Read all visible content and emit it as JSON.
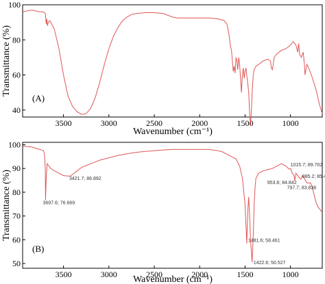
{
  "chart_data": [
    {
      "type": "line",
      "panel_label": "(A)",
      "xlabel": "Wavenumber (cm⁻¹)",
      "ylabel": "Transmittance (%)",
      "xlim": [
        3950,
        650
      ],
      "ylim": [
        36,
        100
      ],
      "x_ticks": [
        3500,
        3000,
        2500,
        2000,
        1500,
        1000
      ],
      "y_ticks": [
        40,
        60,
        80,
        100
      ],
      "series": [
        {
          "color": "#e05555",
          "points": [
            [
              3950,
              96
            ],
            [
              3850,
              97
            ],
            [
              3760,
              96
            ],
            [
              3720,
              96
            ],
            [
              3700,
              95
            ],
            [
              3690,
              89
            ],
            [
              3684,
              92
            ],
            [
              3676,
              88
            ],
            [
              3668,
              90
            ],
            [
              3650,
              91
            ],
            [
              3600,
              86
            ],
            [
              3550,
              75
            ],
            [
              3500,
              60
            ],
            [
              3450,
              48
            ],
            [
              3400,
              42
            ],
            [
              3350,
              39
            ],
            [
              3300,
              37.5
            ],
            [
              3250,
              38
            ],
            [
              3200,
              41
            ],
            [
              3150,
              47
            ],
            [
              3100,
              56
            ],
            [
              3050,
              66
            ],
            [
              3000,
              75
            ],
            [
              2950,
              82
            ],
            [
              2900,
              87
            ],
            [
              2850,
              91
            ],
            [
              2800,
              93
            ],
            [
              2750,
              94.5
            ],
            [
              2700,
              95
            ],
            [
              2600,
              95.5
            ],
            [
              2500,
              95.5
            ],
            [
              2400,
              95
            ],
            [
              2350,
              94
            ],
            [
              2300,
              93
            ],
            [
              2250,
              92.5
            ],
            [
              2100,
              92.5
            ],
            [
              2000,
              92.5
            ],
            [
              1900,
              92.5
            ],
            [
              1800,
              92
            ],
            [
              1730,
              91
            ],
            [
              1700,
              89
            ],
            [
              1680,
              84
            ],
            [
              1660,
              76
            ],
            [
              1650,
              74
            ],
            [
              1640,
              68
            ],
            [
              1630,
              62
            ],
            [
              1620,
              65
            ],
            [
              1610,
              61
            ],
            [
              1600,
              70
            ],
            [
              1590,
              68
            ],
            [
              1580,
              63
            ],
            [
              1570,
              70
            ],
            [
              1560,
              66
            ],
            [
              1540,
              50
            ],
            [
              1530,
              60
            ],
            [
              1520,
              64
            ],
            [
              1510,
              58
            ],
            [
              1500,
              62
            ],
            [
              1490,
              64
            ],
            [
              1480,
              59
            ],
            [
              1470,
              55
            ],
            [
              1460,
              50
            ],
            [
              1450,
              38
            ],
            [
              1440,
              31
            ],
            [
              1430,
              40
            ],
            [
              1420,
              52
            ],
            [
              1410,
              60
            ],
            [
              1400,
              63
            ],
            [
              1380,
              65
            ],
            [
              1350,
              66
            ],
            [
              1300,
              68
            ],
            [
              1250,
              69
            ],
            [
              1220,
              68
            ],
            [
              1210,
              64
            ],
            [
              1200,
              63
            ],
            [
              1190,
              66
            ],
            [
              1180,
              70
            ],
            [
              1150,
              72
            ],
            [
              1100,
              74
            ],
            [
              1050,
              75
            ],
            [
              1000,
              77
            ],
            [
              970,
              79
            ],
            [
              940,
              77
            ],
            [
              920,
              73
            ],
            [
              910,
              78
            ],
            [
              900,
              72
            ],
            [
              880,
              70
            ],
            [
              860,
              73
            ],
            [
              845,
              65
            ],
            [
              840,
              60
            ],
            [
              830,
              63
            ],
            [
              820,
              66
            ],
            [
              800,
              64
            ],
            [
              770,
              60
            ],
            [
              720,
              52
            ],
            [
              680,
              43
            ],
            [
              650,
              38
            ]
          ]
        }
      ]
    },
    {
      "type": "line",
      "panel_label": "(B)",
      "xlabel": "Wavenumber (cm⁻¹)",
      "ylabel": "Transmittance (%)",
      "xlim": [
        3950,
        650
      ],
      "ylim": [
        48,
        101
      ],
      "x_ticks": [
        3500,
        3000,
        2500,
        2000,
        1500,
        1000
      ],
      "y_ticks": [
        50,
        60,
        70,
        80,
        90,
        100
      ],
      "series": [
        {
          "color": "#e05555",
          "points": [
            [
              3950,
              99.5
            ],
            [
              3850,
              99
            ],
            [
              3760,
              98
            ],
            [
              3720,
              97.5
            ],
            [
              3710,
              96
            ],
            [
              3700,
              90
            ],
            [
              3697.6,
              76.7
            ],
            [
              3690,
              86
            ],
            [
              3680,
              92
            ],
            [
              3660,
              91
            ],
            [
              3640,
              90
            ],
            [
              3600,
              89
            ],
            [
              3550,
              88
            ],
            [
              3500,
              87
            ],
            [
              3450,
              86.8
            ],
            [
              3421.7,
              86.89
            ],
            [
              3400,
              87.5
            ],
            [
              3350,
              89
            ],
            [
              3300,
              90.5
            ],
            [
              3200,
              92
            ],
            [
              3100,
              93.5
            ],
            [
              3000,
              94.5
            ],
            [
              2900,
              95.5
            ],
            [
              2800,
              96.2
            ],
            [
              2700,
              96.8
            ],
            [
              2600,
              97.2
            ],
            [
              2500,
              97.5
            ],
            [
              2400,
              97.8
            ],
            [
              2300,
              98
            ],
            [
              2200,
              98
            ],
            [
              2100,
              98
            ],
            [
              2000,
              98
            ],
            [
              1900,
              98
            ],
            [
              1800,
              97.5
            ],
            [
              1750,
              97
            ],
            [
              1700,
              96
            ],
            [
              1650,
              95
            ],
            [
              1600,
              94
            ],
            [
              1560,
              91
            ],
            [
              1530,
              86
            ],
            [
              1500,
              75
            ],
            [
              1481.6,
              58.46
            ],
            [
              1470,
              72
            ],
            [
              1460,
              78
            ],
            [
              1450,
              70
            ],
            [
              1440,
              60
            ],
            [
              1422.6,
              50.53
            ],
            [
              1410,
              62
            ],
            [
              1400,
              75
            ],
            [
              1390,
              82
            ],
            [
              1380,
              86
            ],
            [
              1350,
              88
            ],
            [
              1300,
              89
            ],
            [
              1250,
              89.5
            ],
            [
              1200,
              90
            ],
            [
              1150,
              91
            ],
            [
              1100,
              92
            ],
            [
              1050,
              91
            ],
            [
              1015.7,
              89.7
            ],
            [
              1000,
              90
            ],
            [
              980,
              88
            ],
            [
              960,
              87
            ],
            [
              953.6,
              84.84
            ],
            [
              940,
              88
            ],
            [
              920,
              87
            ],
            [
              900,
              86
            ],
            [
              885.2,
              85.5
            ],
            [
              870,
              87
            ],
            [
              850,
              86
            ],
            [
              820,
              84
            ],
            [
              797.7,
              83.84
            ],
            [
              780,
              84
            ],
            [
              760,
              82
            ],
            [
              740,
              79
            ],
            [
              720,
              76
            ],
            [
              700,
              74
            ],
            [
              680,
              73
            ],
            [
              660,
              72
            ],
            [
              650,
              71.5
            ]
          ]
        }
      ],
      "annotations": [
        {
          "x": 3697.6,
          "y": 76.669,
          "text": "3697.6; 76.669"
        },
        {
          "x": 3421.7,
          "y": 86.892,
          "text": "3421.7; 86.892"
        },
        {
          "x": 1481.6,
          "y": 58.461,
          "text": "1481.6; 58.461"
        },
        {
          "x": 1422.6,
          "y": 50.527,
          "text": "1422.6; 50.527"
        },
        {
          "x": 1015.7,
          "y": 89.702,
          "text": "1015.7; 89.702"
        },
        {
          "x": 885.2,
          "y": 85.498,
          "text": "885.2; 85.498"
        },
        {
          "x": 953.6,
          "y": 84.842,
          "text": "953.6; 84.842"
        },
        {
          "x": 797.7,
          "y": 83.836,
          "text": "797.7; 83.836"
        }
      ]
    }
  ]
}
